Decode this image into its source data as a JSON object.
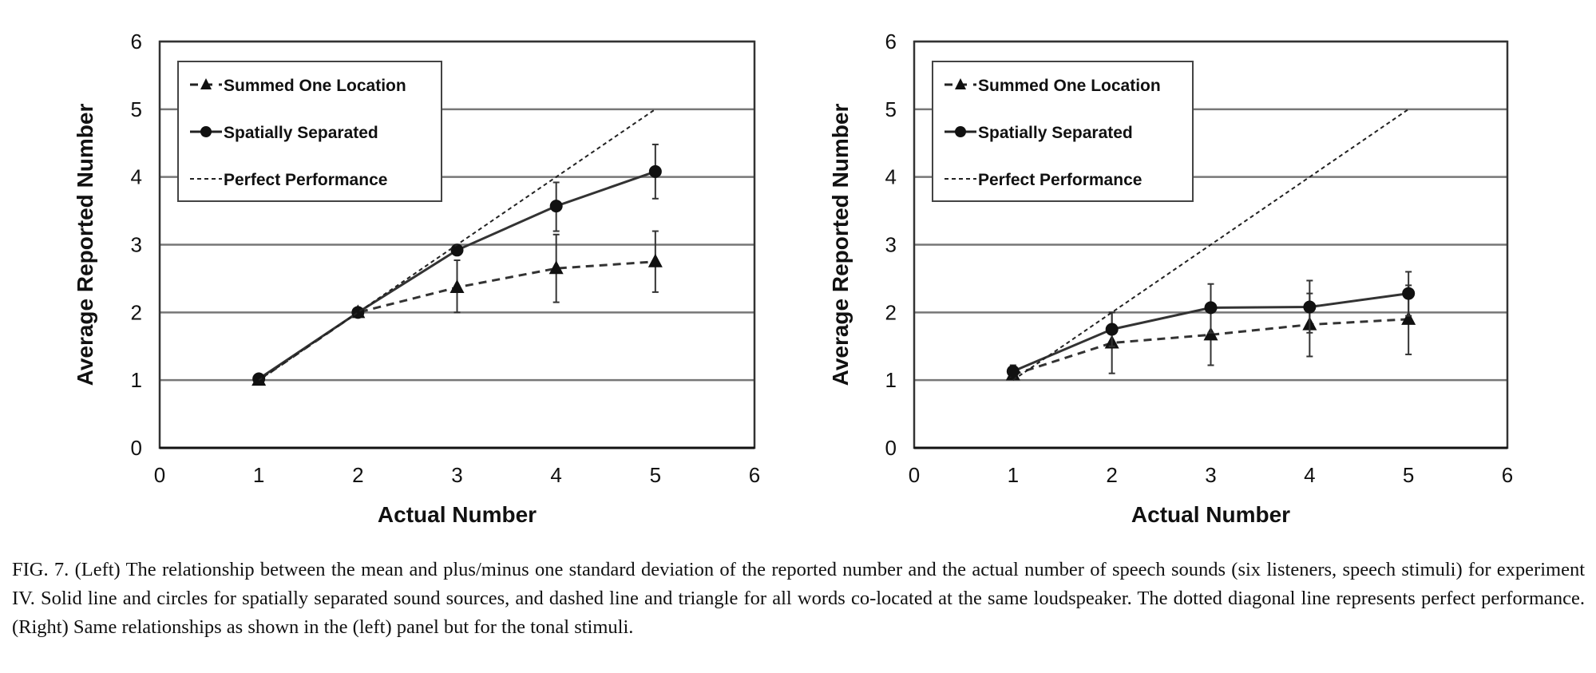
{
  "chart_data": [
    {
      "type": "line",
      "panel": "Left",
      "xlabel": "Actual Number",
      "ylabel": "Average Reported Number",
      "xlim": [
        0,
        6
      ],
      "ylim": [
        0,
        6
      ],
      "xticks": [
        "0",
        "1",
        "2",
        "3",
        "4",
        "5",
        "6"
      ],
      "yticks": [
        "0",
        "1",
        "2",
        "3",
        "4",
        "5",
        "6"
      ],
      "grid": "horizontal",
      "legend_position": "top-left",
      "series": [
        {
          "name": "Summed One Location",
          "style": "dashed",
          "marker": "triangle",
          "x": [
            1,
            2,
            3,
            4,
            5
          ],
          "y": [
            1.0,
            2.0,
            2.37,
            2.65,
            2.75
          ],
          "err_low": [
            1.0,
            2.0,
            2.0,
            2.15,
            2.3
          ],
          "err_high": [
            1.0,
            2.0,
            2.77,
            3.15,
            3.2
          ]
        },
        {
          "name": "Spatially Separated",
          "style": "solid",
          "marker": "circle",
          "x": [
            1,
            2,
            3,
            4,
            5
          ],
          "y": [
            1.02,
            2.0,
            2.92,
            3.57,
            4.08
          ],
          "err_low": [
            1.0,
            2.0,
            2.9,
            3.2,
            3.68
          ],
          "err_high": [
            1.04,
            2.0,
            2.95,
            3.92,
            4.48
          ]
        },
        {
          "name": "Perfect Performance",
          "style": "dotted",
          "marker": "none",
          "x": [
            1,
            2,
            3,
            4,
            5
          ],
          "y": [
            1,
            2,
            3,
            4,
            5
          ]
        }
      ]
    },
    {
      "type": "line",
      "panel": "Right",
      "xlabel": "Actual Number",
      "ylabel": "Average Reported Number",
      "xlim": [
        0,
        6
      ],
      "ylim": [
        0,
        6
      ],
      "xticks": [
        "0",
        "1",
        "2",
        "3",
        "4",
        "5",
        "6"
      ],
      "yticks": [
        "0",
        "1",
        "2",
        "3",
        "4",
        "5",
        "6"
      ],
      "grid": "horizontal",
      "legend_position": "top-left",
      "series": [
        {
          "name": "Summed One Location",
          "style": "dashed",
          "marker": "triangle",
          "x": [
            1,
            2,
            3,
            4,
            5
          ],
          "y": [
            1.08,
            1.55,
            1.67,
            1.82,
            1.9
          ],
          "err_low": [
            1.05,
            1.1,
            1.22,
            1.35,
            1.38
          ],
          "err_high": [
            1.12,
            2.0,
            2.1,
            2.28,
            2.4
          ]
        },
        {
          "name": "Spatially Separated",
          "style": "solid",
          "marker": "circle",
          "x": [
            1,
            2,
            3,
            4,
            5
          ],
          "y": [
            1.13,
            1.75,
            2.07,
            2.08,
            2.28
          ],
          "err_low": [
            1.05,
            1.5,
            1.7,
            1.7,
            1.95
          ],
          "err_high": [
            1.22,
            2.0,
            2.42,
            2.47,
            2.6
          ]
        },
        {
          "name": "Perfect Performance",
          "style": "dotted",
          "marker": "none",
          "x": [
            1,
            2,
            3,
            4,
            5
          ],
          "y": [
            1,
            2,
            3,
            4,
            5
          ]
        }
      ]
    }
  ],
  "caption": "FIG. 7. (Left) The relationship between the mean and plus/minus one standard deviation of the reported number and the actual number of speech sounds (six listeners, speech stimuli) for experiment IV. Solid line and circles for spatially separated sound sources, and dashed line and triangle for all words co-located at the same loudspeaker. The dotted diagonal line represents perfect performance. (Right) Same relationships as shown in the (left) panel but for the tonal stimuli."
}
